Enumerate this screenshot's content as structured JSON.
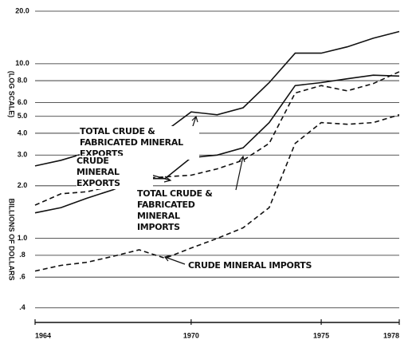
{
  "chart_data": {
    "type": "line",
    "y_label": "BILLIONS OF DOLLARS",
    "y_label_note": "(LOG SCALE)",
    "x": [
      1964,
      1965,
      1966,
      1967,
      1968,
      1969,
      1970,
      1971,
      1972,
      1973,
      1974,
      1975,
      1976,
      1977,
      1978
    ],
    "series": [
      {
        "name": "TOTAL CRUDE & FABRICATED MINERAL EXPORTS",
        "color": "#111111",
        "dash": false,
        "values": [
          2.6,
          2.8,
          3.1,
          3.5,
          4.2,
          4.1,
          5.3,
          5.1,
          5.6,
          7.8,
          11.5,
          11.5,
          12.5,
          14.0,
          15.3
        ]
      },
      {
        "name": "CRUDE MINERAL EXPORTS",
        "color": "#111111",
        "dash": false,
        "values": [
          1.4,
          1.5,
          1.7,
          1.9,
          2.2,
          2.2,
          2.9,
          3.0,
          3.3,
          4.6,
          7.5,
          7.8,
          8.2,
          8.6,
          8.5
        ]
      },
      {
        "name": "TOTAL CRUDE & FABRICATED MINERAL IMPORTS",
        "color": "#111111",
        "dash": true,
        "values": [
          1.55,
          1.8,
          1.85,
          2.0,
          2.2,
          2.25,
          2.3,
          2.5,
          2.8,
          3.5,
          6.8,
          7.5,
          7.0,
          7.7,
          9.0
        ]
      },
      {
        "name": "CRUDE MINERAL IMPORTS",
        "color": "#111111",
        "dash": true,
        "values": [
          0.65,
          0.7,
          0.73,
          0.79,
          0.86,
          0.77,
          0.88,
          1.0,
          1.15,
          1.5,
          3.5,
          4.6,
          4.5,
          4.6,
          5.1
        ]
      }
    ],
    "xlim": [
      1964,
      1978
    ],
    "xticks": [
      1964,
      1970,
      1975,
      1978
    ],
    "ylim": [
      0.33,
      20
    ],
    "log_y": true,
    "grid": true,
    "yticks": [
      {
        "value": 20,
        "label": "20.0"
      },
      {
        "value": 10,
        "label": "10.0"
      },
      {
        "value": 8,
        "label": "8.0"
      },
      {
        "value": 6,
        "label": "6.0"
      },
      {
        "value": 5,
        "label": "5.0"
      },
      {
        "value": 4,
        "label": "4.0"
      },
      {
        "value": 3,
        "label": "3.0"
      },
      {
        "value": 2,
        "label": "2.0"
      },
      {
        "value": 1,
        "label": "1.0"
      },
      {
        "value": 0.8,
        "label": ".8"
      },
      {
        "value": 0.6,
        "label": ".6"
      },
      {
        "value": 0.4,
        "label": ".4"
      }
    ]
  }
}
